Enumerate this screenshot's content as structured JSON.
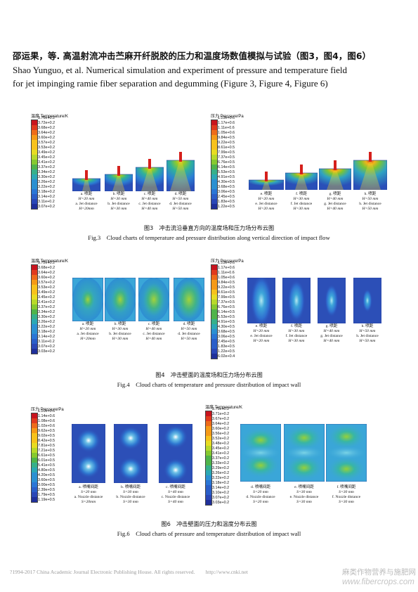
{
  "header": {
    "title_cn": "邵运果，等. 高温射流冲击苎麻开纤脱胶的压力和温度场数值模拟与试验（图3，图4，图6）",
    "title_en_line1": "Shao Yunguo, et al. Numerical simulation and experiment of pressure and temperature field",
    "title_en_line2": "for jet impinging ramie fiber separation and degumming (Figure 3, Figure 4, Figure 6)"
  },
  "colors": {
    "scale": [
      "#c8141e",
      "#e03a1e",
      "#ee6b1a",
      "#f59a17",
      "#f7c21c",
      "#e8dc22",
      "#b8d92a",
      "#86c92f",
      "#4fb44a",
      "#36b08a",
      "#2ba8b4",
      "#2b90d2",
      "#2a76d6",
      "#2a5ec9",
      "#2a47b7",
      "#1f2f9a"
    ],
    "bg_blue": "#2c4fb7"
  },
  "fig3": {
    "temp_legend": {
      "title": "温度 Temperature/K",
      "labels": [
        "3.76e+0.2",
        "3.72e+0.2",
        "3.68e+0.2",
        "3.64e+0.2",
        "3.60e+0.2",
        "3.57e+0.2",
        "3.53e+0.2",
        "3.49e+0.2",
        "3.45e+0.2",
        "3.41e+0.2",
        "3.37e+0.2",
        "3.34e+0.2",
        "3.30e+0.2",
        "3.26e+0.2",
        "3.22e+0.2",
        "3.18e+0.2",
        "3.14e+0.2",
        "3.11e+0.2",
        "3.07e+0.2"
      ]
    },
    "pres_legend": {
      "title": "压力 Pressure/Pa",
      "labels": [
        "1.23e+0.6",
        "1.17e+0.6",
        "1.11e+0.6",
        "1.05e+0.6",
        "9.84e+0.5",
        "9.22e+0.5",
        "8.61e+0.5",
        "7.99e+0.5",
        "7.37e+0.5",
        "6.76e+0.5",
        "6.14e+0.5",
        "5.53e+0.5",
        "4.91e+0.5",
        "4.30e+0.5",
        "3.68e+0.5",
        "3.06e+0.5",
        "2.45e+0.5",
        "1.83e+0.5",
        "1.22e+0.5"
      ]
    },
    "temp_panels": [
      {
        "l1": "a. 喷距",
        "l2": "H=20 mm",
        "l3": "a. Jet distance",
        "l4": "H=20mm"
      },
      {
        "l1": "b. 喷距",
        "l2": "H=30 mm",
        "l3": "b. Jet distance",
        "l4": "H=30 mm"
      },
      {
        "l1": "c. 喷距",
        "l2": "H=40 mm",
        "l3": "c. Jet distance",
        "l4": "H=40 mm"
      },
      {
        "l1": "d. 喷距",
        "l2": "H=50 mm",
        "l3": "d. Jet distance",
        "l4": "H=50 mm"
      }
    ],
    "pres_panels": [
      {
        "l1": "e. 喷距",
        "l2": "H=20 mm",
        "l3": "e. Jet distance",
        "l4": "H=20 mm"
      },
      {
        "l1": "f. 喷距",
        "l2": "H=30 mm",
        "l3": "f. Jet distance",
        "l4": "H=30 mm"
      },
      {
        "l1": "g. 喷距",
        "l2": "H=40 mm",
        "l3": "g. Jet distance",
        "l4": "H=40 mm"
      },
      {
        "l1": "h. 喷距",
        "l2": "H=50 mm",
        "l3": "h. Jet distance",
        "l4": "H=50 mm"
      }
    ],
    "caption_cn": "图3　冲击流沿垂直方向的温度场和压力场分布云图",
    "caption_en": "Fig.3　Cloud charts of temperature and pressure distribution along vertical direction of impact flow"
  },
  "fig4": {
    "temp_legend": {
      "title": "温度 Temperature/K",
      "labels": [
        "3.72e+0.2",
        "3.68e+0.2",
        "3.64e+0.2",
        "3.60e+0.2",
        "3.57e+0.2",
        "3.53e+0.2",
        "3.49e+0.2",
        "3.45e+0.2",
        "3.41e+0.2",
        "3.37e+0.2",
        "3.34e+0.2",
        "3.30e+0.2",
        "3.26e+0.2",
        "3.22e+0.2",
        "3.18e+0.2",
        "3.14e+0.2",
        "3.11e+0.2",
        "3.07e+0.2",
        "3.03e+0.2"
      ]
    },
    "pres_legend": {
      "title": "压力 Pressure/Pa",
      "labels": [
        "1.23e+0.6",
        "1.17e+0.6",
        "1.11e+0.6",
        "1.05e+0.6",
        "9.84e+0.5",
        "9.22e+0.5",
        "8.61e+0.5",
        "7.99e+0.5",
        "7.37e+0.5",
        "6.76e+0.5",
        "6.14e+0.5",
        "5.53e+0.5",
        "4.91e+0.5",
        "4.30e+0.5",
        "3.68e+0.5",
        "3.06e+0.5",
        "2.45e+0.5",
        "1.83e+0.5",
        "1.22e+0.5",
        "6.02e+0.4"
      ]
    },
    "temp_panels": [
      {
        "l1": "a. 喷距",
        "l2": "H=20 mm",
        "l3": "a. Jet distance",
        "l4": "H=20mm"
      },
      {
        "l1": "b. 喷距",
        "l2": "H=30 mm",
        "l3": "b. Jet distance",
        "l4": "H=30 mm"
      },
      {
        "l1": "c. 喷距",
        "l2": "H=40 mm",
        "l3": "c. Jet distance",
        "l4": "H=40 mm"
      },
      {
        "l1": "d. 喷距",
        "l2": "H=50 mm",
        "l3": "d. Jet distance",
        "l4": "H=50 mm"
      }
    ],
    "pres_panels": [
      {
        "l1": "e. 喷距",
        "l2": "H=20 mm",
        "l3": "e. Jet distance",
        "l4": "H=20 mm"
      },
      {
        "l1": "f. 喷距",
        "l2": "H=30 mm",
        "l3": "f. Jet distance",
        "l4": "H=30 mm"
      },
      {
        "l1": "g. 喷距",
        "l2": "H=40 mm",
        "l3": "g. Jet distance",
        "l4": "H=40 mm"
      },
      {
        "l1": "h. 喷距",
        "l2": "H=50 mm",
        "l3": "h. Jet distance",
        "l4": "H=50 mm"
      }
    ],
    "caption_cn": "图4　冲击壁面的温度场和压力场分布云图",
    "caption_en": "Fig.4　Cloud charts of temperature and pressure distribution of impact wall"
  },
  "fig6": {
    "pres_legend": {
      "title": "压力 Pressure/Pa",
      "labels": [
        "1.20e+0.6",
        "1.14e+0.6",
        "1.08e+0.6",
        "1.02e+0.6",
        "9.62e+0.5",
        "9.02e+0.5",
        "8.42e+0.5",
        "7.81e+0.5",
        "7.21e+0.5",
        "6.61e+0.5",
        "6.01e+0.5",
        "5.41e+0.5",
        "4.80e+0.5",
        "4.20e+0.5",
        "3.60e+0.5",
        "3.00e+0.5",
        "2.39e+0.5",
        "1.79e+0.5",
        "1.19e+0.5"
      ]
    },
    "temp_legend": {
      "title": "温度 Temperature/K",
      "labels": [
        "3.75e+0.2",
        "3.71e+0.2",
        "3.67e+0.2",
        "3.64e+0.2",
        "3.60e+0.2",
        "3.56e+0.2",
        "3.52e+0.2",
        "3.48e+0.2",
        "3.45e+0.2",
        "3.41e+0.2",
        "3.37e+0.2",
        "3.33e+0.2",
        "3.29e+0.2",
        "3.26e+0.2",
        "3.22e+0.2",
        "3.18e+0.2",
        "3.14e+0.2",
        "3.10e+0.2",
        "3.07e+0.2",
        "3.03e+0.2"
      ]
    },
    "pres_panels": [
      {
        "l1": "a. 喷嘴间距",
        "l2": "S=20 mm",
        "l3": "a. Nozzle distance",
        "l4": "S=20mm"
      },
      {
        "l1": "b. 喷嘴间距",
        "l2": "S=30 mm",
        "l3": "b. Nozzle distance",
        "l4": "S=30 mm"
      },
      {
        "l1": "c. 喷嘴间距",
        "l2": "S=40 mm",
        "l3": "c. Nozzle distance",
        "l4": "S=40 mm"
      }
    ],
    "temp_panels": [
      {
        "l1": "d. 喷嘴间距",
        "l2": "S=20 mm",
        "l3": "d. Nozzle distance",
        "l4": "S=20 mm"
      },
      {
        "l1": "e. 喷嘴间距",
        "l2": "S=30 mm",
        "l3": "e. Nozzle distance",
        "l4": "S=30 mm"
      },
      {
        "l1": "f. 喷嘴间距",
        "l2": "S=30 mm",
        "l3": "f. Nozzle distance",
        "l4": "S=30 mm"
      }
    ],
    "caption_cn": "图6　冲击壁面的压力和温度分布云图",
    "caption_en": "Fig.6　Cloud charts of pressure and temperature distribution of impact wall"
  },
  "footer": {
    "copyright": "?1994-2017 China Academic Journal Electronic Publishing House. All rights reserved.　　http://www.cnki.net",
    "watermark_cn": "麻类作物营养与施肥网",
    "watermark_en": "www.fibercrops.com"
  }
}
